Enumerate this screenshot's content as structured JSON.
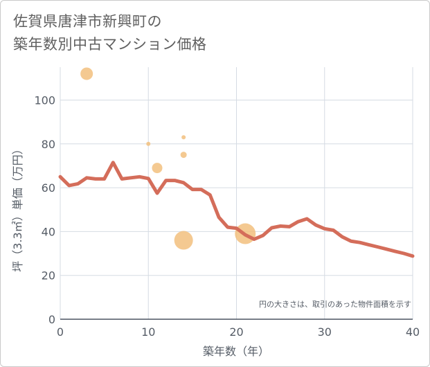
{
  "title_lines": [
    "佐賀県唐津市新興町の",
    "築年数別中古マンション価格"
  ],
  "chart_data": {
    "type": "line+scatter",
    "xlabel": "築年数（年）",
    "ylabel": "坪（3.3㎡）単価（万円）",
    "xlim": [
      0,
      40
    ],
    "ylim": [
      0,
      115
    ],
    "xticks": [
      0,
      10,
      20,
      30,
      40
    ],
    "yticks": [
      0,
      20,
      40,
      60,
      80,
      100
    ],
    "grid": true,
    "note": "円の大きさは、取引のあった物件面積を示す",
    "line_color": "#d46d5a",
    "bubble_color": "#f2c07e",
    "line": {
      "x": [
        0,
        1,
        2,
        3,
        4,
        5,
        6,
        7,
        8,
        9,
        10,
        11,
        12,
        13,
        14,
        15,
        16,
        17,
        18,
        19,
        20,
        21,
        22,
        23,
        24,
        25,
        26,
        27,
        28,
        29,
        30,
        31,
        32,
        33,
        34,
        35,
        36,
        37,
        38,
        39,
        40
      ],
      "y": [
        65,
        61,
        61.8,
        64.5,
        64,
        64,
        71.5,
        64,
        64.5,
        65,
        64.2,
        57.5,
        63.3,
        63.3,
        62.3,
        59.2,
        59.2,
        56.7,
        46.5,
        42,
        41.5,
        38.5,
        36.5,
        38.2,
        41.7,
        42.5,
        42.2,
        44.5,
        45.8,
        43,
        41.3,
        40.6,
        37.6,
        35.6,
        35,
        34,
        33,
        32,
        31,
        30,
        28.8
      ]
    },
    "bubbles": [
      {
        "x": 3,
        "y": 112,
        "size": 3
      },
      {
        "x": 10,
        "y": 80,
        "size": 1
      },
      {
        "x": 11,
        "y": 69,
        "size": 2.5
      },
      {
        "x": 14,
        "y": 83,
        "size": 1
      },
      {
        "x": 14,
        "y": 75,
        "size": 1.5
      },
      {
        "x": 14,
        "y": 36,
        "size": 4.5
      },
      {
        "x": 21,
        "y": 39,
        "size": 5
      }
    ]
  }
}
